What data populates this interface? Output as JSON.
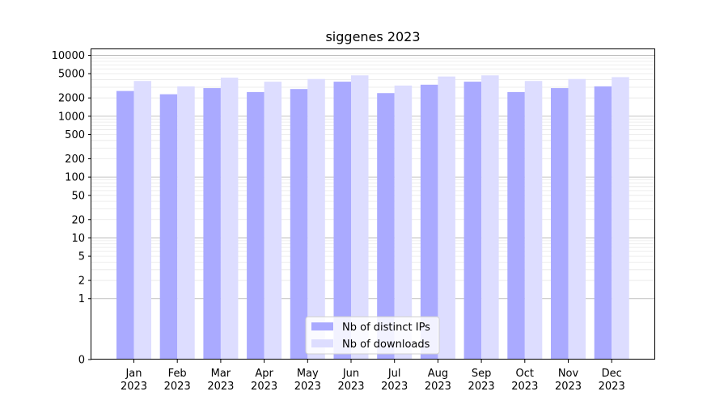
{
  "chart_data": {
    "type": "bar",
    "title": "siggenes 2023",
    "xlabel": "",
    "ylabel": "",
    "yscale": "symlog",
    "ylim": [
      0,
      13000
    ],
    "yticks": [
      0,
      1,
      2,
      5,
      10,
      20,
      50,
      100,
      200,
      500,
      1000,
      2000,
      5000,
      10000
    ],
    "ytick_labels": [
      "0",
      "1",
      "2",
      "5",
      "10",
      "20",
      "50",
      "100",
      "200",
      "500",
      "1000",
      "2000",
      "5000",
      "10000"
    ],
    "categories": [
      [
        "Jan",
        "2023"
      ],
      [
        "Feb",
        "2023"
      ],
      [
        "Mar",
        "2023"
      ],
      [
        "Apr",
        "2023"
      ],
      [
        "May",
        "2023"
      ],
      [
        "Jun",
        "2023"
      ],
      [
        "Jul",
        "2023"
      ],
      [
        "Aug",
        "2023"
      ],
      [
        "Sep",
        "2023"
      ],
      [
        "Oct",
        "2023"
      ],
      [
        "Nov",
        "2023"
      ],
      [
        "Dec",
        "2023"
      ]
    ],
    "series": [
      {
        "name": "Nb of distinct IPs",
        "color": "#aaaaff",
        "values": [
          2600,
          2300,
          2900,
          2500,
          2800,
          3700,
          2400,
          3300,
          3700,
          2500,
          2900,
          3100
        ]
      },
      {
        "name": "Nb of downloads",
        "color": "#ddddff",
        "values": [
          3800,
          3100,
          4300,
          3700,
          4100,
          4700,
          3200,
          4500,
          4700,
          3800,
          4100,
          4400
        ]
      }
    ],
    "grid": true,
    "legend_position": "bottom-center"
  }
}
